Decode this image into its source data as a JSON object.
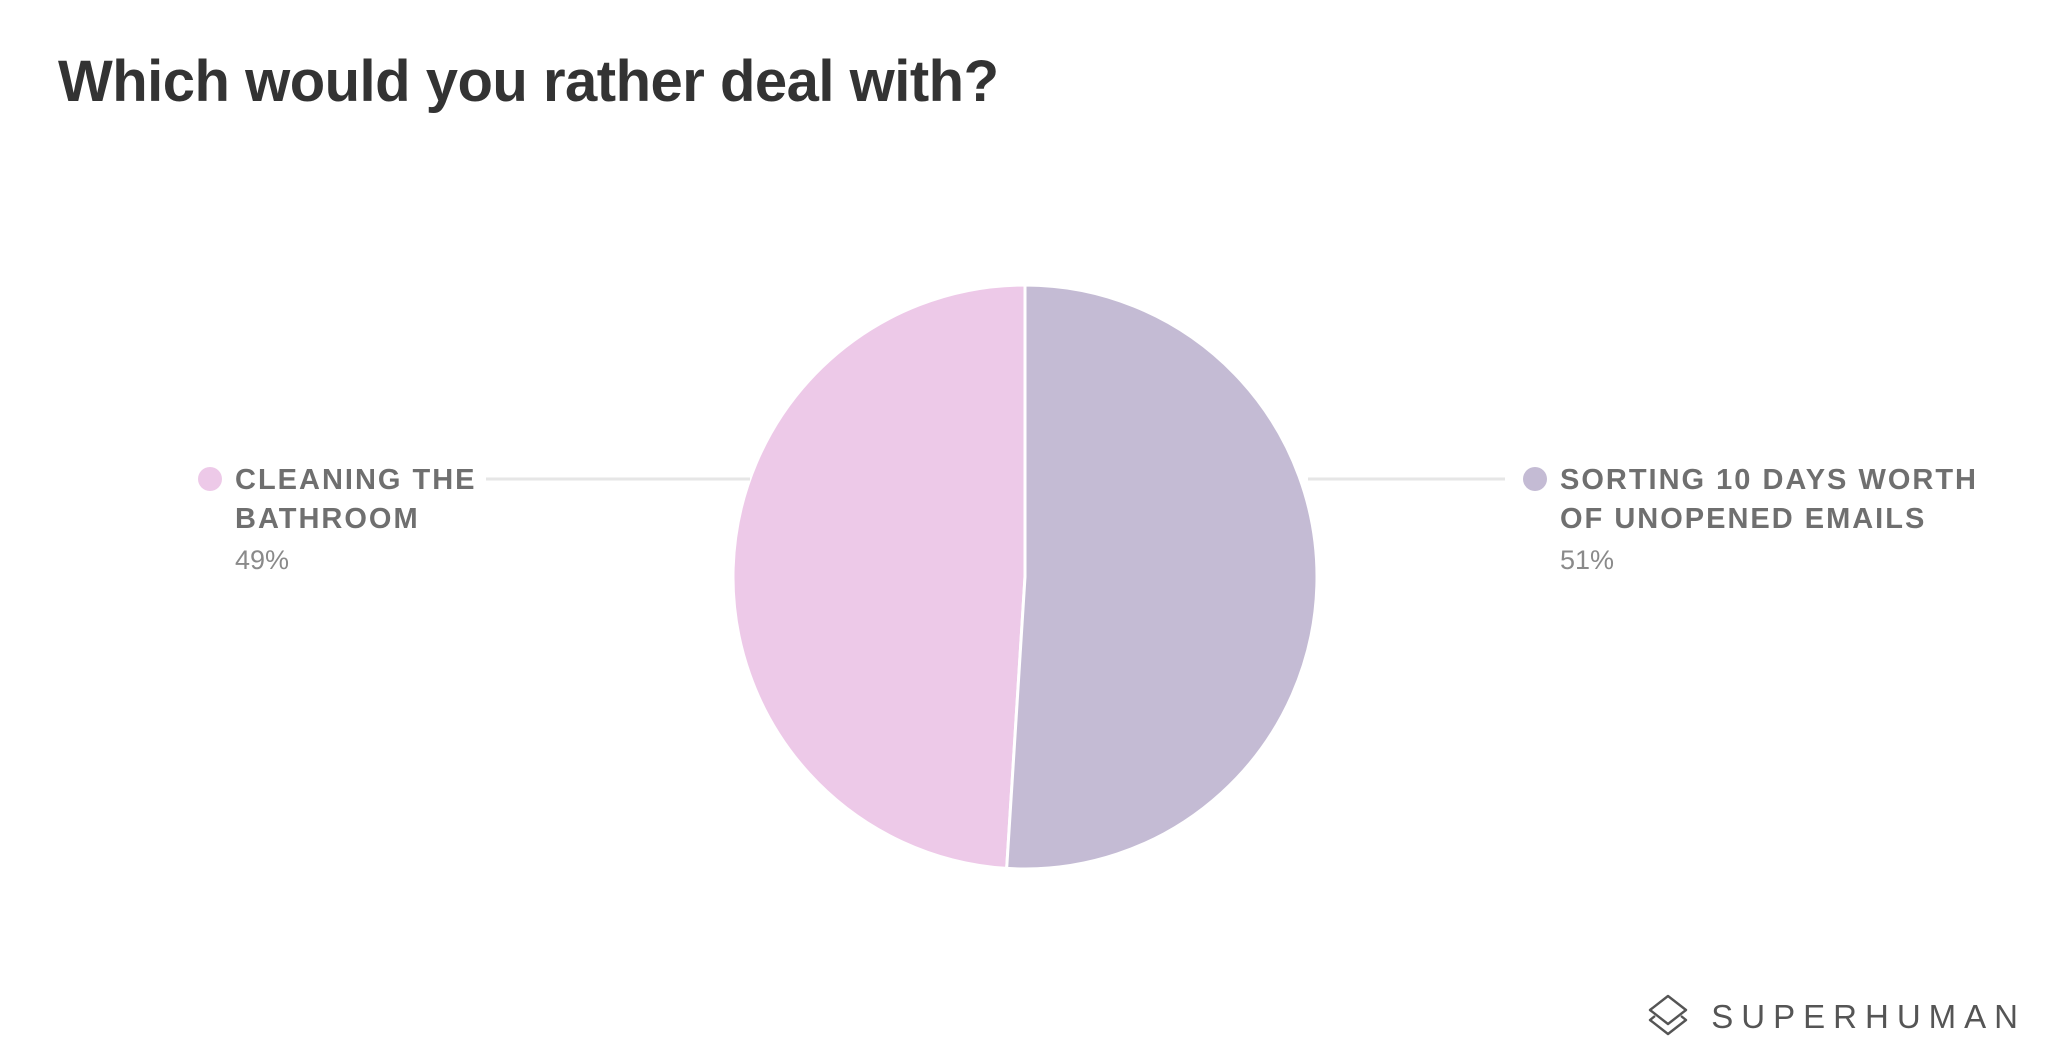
{
  "title": "Which would you rather deal with?",
  "brand": {
    "name": "SUPERHUMAN",
    "icon": "layers-logo-icon"
  },
  "chart_data": {
    "type": "pie",
    "title": "Which would you rather deal with?",
    "slices": [
      {
        "label_lines": [
          "CLEANING THE",
          "BATHROOM"
        ],
        "value": 49,
        "value_label": "49%",
        "color": "#edc9e8"
      },
      {
        "label_lines": [
          "SORTING 10 DAYS WORTH",
          "OF UNOPENED EMAILS"
        ],
        "value": 51,
        "value_label": "51%",
        "color": "#c4bbd4"
      }
    ],
    "legend": "left-right",
    "leader_line_color": "#e6e6e6"
  }
}
